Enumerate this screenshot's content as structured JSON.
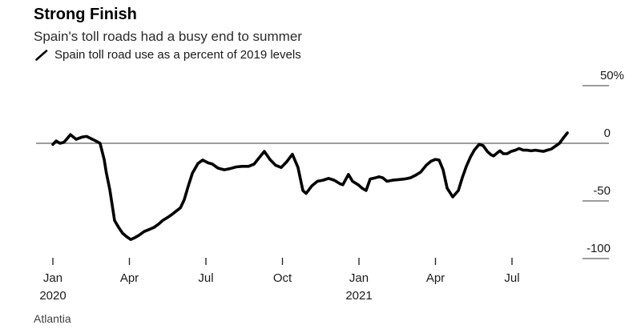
{
  "header": {
    "title": "Strong Finish",
    "subtitle": "Spain's toll roads had a busy end to summer"
  },
  "legend": {
    "label": "Spain toll road use as a percent of 2019 levels"
  },
  "source": "Atlantia",
  "colors": {
    "line": "#000000",
    "zero_line": "#7d7d7d",
    "tick": "#7d7d7d",
    "x_tick": "#2b2b2b",
    "axis_text": "#1a1a1a"
  },
  "chart_data": {
    "type": "line",
    "title": "Strong Finish",
    "subtitle": "Spain's toll roads had a busy end to summer",
    "series_name": "Spain toll road use as a percent of 2019 levels",
    "x_unit": "months since Jan 2020",
    "xlim": [
      0,
      21.8
    ],
    "ylim": [
      -110,
      55
    ],
    "grid": false,
    "legend_position": "top-left",
    "x_ticks": [
      {
        "m": 0,
        "label": "Jan",
        "sub": "2020"
      },
      {
        "m": 3,
        "label": "Apr"
      },
      {
        "m": 6,
        "label": "Jul"
      },
      {
        "m": 9,
        "label": "Oct"
      },
      {
        "m": 12,
        "label": "Jan",
        "sub": "2021"
      },
      {
        "m": 15,
        "label": "Apr"
      },
      {
        "m": 18,
        "label": "Jul"
      }
    ],
    "y_ticks": [
      {
        "v": 50,
        "label": "50%"
      },
      {
        "v": 0,
        "label": "0"
      },
      {
        "v": -50,
        "label": "-50"
      },
      {
        "v": -100,
        "label": "-100"
      }
    ],
    "points": [
      [
        0,
        -1
      ],
      [
        0.13,
        2
      ],
      [
        0.28,
        0
      ],
      [
        0.44,
        1
      ],
      [
        0.69,
        7.5
      ],
      [
        0.91,
        3.5
      ],
      [
        1.16,
        5.5
      ],
      [
        1.32,
        6
      ],
      [
        1.6,
        3
      ],
      [
        1.85,
        0
      ],
      [
        2.01,
        -14
      ],
      [
        2.1,
        -26
      ],
      [
        2.23,
        -40
      ],
      [
        2.32,
        -53
      ],
      [
        2.42,
        -67
      ],
      [
        2.58,
        -73
      ],
      [
        2.73,
        -78
      ],
      [
        2.89,
        -81
      ],
      [
        3.05,
        -83.5
      ],
      [
        3.2,
        -82
      ],
      [
        3.36,
        -80
      ],
      [
        3.58,
        -76.5
      ],
      [
        3.8,
        -74.5
      ],
      [
        3.96,
        -73
      ],
      [
        4.15,
        -70
      ],
      [
        4.3,
        -67
      ],
      [
        4.52,
        -64
      ],
      [
        4.68,
        -61.5
      ],
      [
        5,
        -56
      ],
      [
        5.15,
        -49
      ],
      [
        5.31,
        -37
      ],
      [
        5.47,
        -26
      ],
      [
        5.69,
        -17.5
      ],
      [
        5.87,
        -14.5
      ],
      [
        6.09,
        -17
      ],
      [
        6.25,
        -18
      ],
      [
        6.47,
        -21.5
      ],
      [
        6.72,
        -23
      ],
      [
        6.94,
        -22
      ],
      [
        7.19,
        -20.5
      ],
      [
        7.41,
        -20
      ],
      [
        7.67,
        -20
      ],
      [
        7.89,
        -18
      ],
      [
        8.07,
        -13
      ],
      [
        8.29,
        -7
      ],
      [
        8.51,
        -14
      ],
      [
        8.73,
        -19
      ],
      [
        8.95,
        -21
      ],
      [
        9.17,
        -16
      ],
      [
        9.39,
        -9.5
      ],
      [
        9.61,
        -21
      ],
      [
        9.8,
        -41
      ],
      [
        9.93,
        -43.5
      ],
      [
        10.15,
        -37
      ],
      [
        10.37,
        -33
      ],
      [
        10.59,
        -32
      ],
      [
        10.81,
        -30.5
      ],
      [
        11.03,
        -32
      ],
      [
        11.25,
        -35
      ],
      [
        11.37,
        -36
      ],
      [
        11.59,
        -27
      ],
      [
        11.75,
        -33
      ],
      [
        11.97,
        -36
      ],
      [
        12.13,
        -39
      ],
      [
        12.28,
        -41
      ],
      [
        12.44,
        -31
      ],
      [
        12.63,
        -30
      ],
      [
        12.79,
        -29
      ],
      [
        12.94,
        -30
      ],
      [
        13.1,
        -33
      ],
      [
        13.32,
        -32
      ],
      [
        13.54,
        -31.5
      ],
      [
        13.79,
        -31
      ],
      [
        14.01,
        -30
      ],
      [
        14.2,
        -28
      ],
      [
        14.42,
        -25
      ],
      [
        14.64,
        -19
      ],
      [
        14.83,
        -15.5
      ],
      [
        14.99,
        -14
      ],
      [
        15.14,
        -14.5
      ],
      [
        15.3,
        -23
      ],
      [
        15.46,
        -39
      ],
      [
        15.68,
        -46.5
      ],
      [
        15.9,
        -41
      ],
      [
        16.05,
        -30
      ],
      [
        16.21,
        -20
      ],
      [
        16.37,
        -12
      ],
      [
        16.52,
        -6
      ],
      [
        16.71,
        -1
      ],
      [
        16.87,
        -2
      ],
      [
        17.03,
        -7
      ],
      [
        17.18,
        -10
      ],
      [
        17.28,
        -11
      ],
      [
        17.44,
        -8
      ],
      [
        17.53,
        -6.5
      ],
      [
        17.66,
        -9
      ],
      [
        17.81,
        -9
      ],
      [
        17.97,
        -7
      ],
      [
        18.13,
        -6
      ],
      [
        18.28,
        -4.5
      ],
      [
        18.44,
        -6
      ],
      [
        18.6,
        -6
      ],
      [
        18.75,
        -6.5
      ],
      [
        18.91,
        -6
      ],
      [
        19.07,
        -6.5
      ],
      [
        19.23,
        -7
      ],
      [
        19.38,
        -6
      ],
      [
        19.54,
        -5
      ],
      [
        19.7,
        -2.5
      ],
      [
        19.86,
        0
      ],
      [
        20.01,
        4.5
      ],
      [
        20.17,
        9
      ]
    ]
  }
}
